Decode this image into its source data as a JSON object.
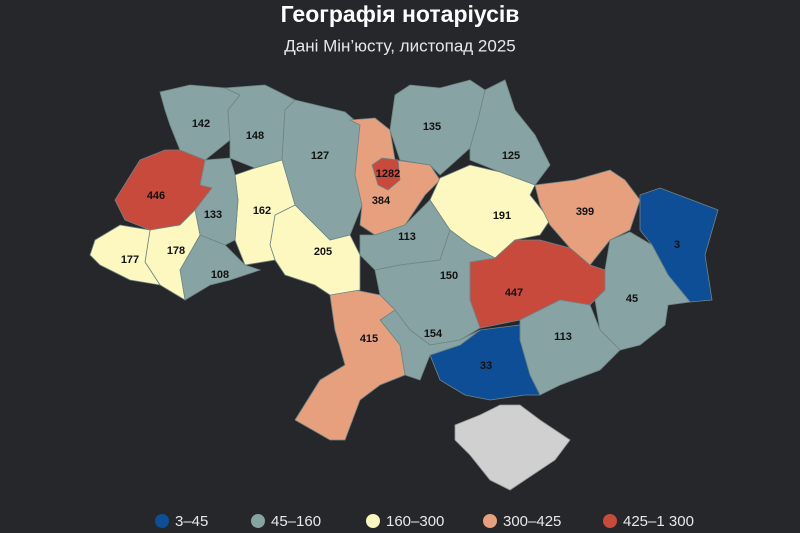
{
  "title": "Географія нотаріусів",
  "subtitle": "Дані Мін’юсту, листопад 2025",
  "regions": [
    {
      "value": 142,
      "color": "#87a3a3"
    },
    {
      "value": 148,
      "color": "#87a3a3"
    },
    {
      "value": 127,
      "color": "#87a3a3"
    },
    {
      "value": 384,
      "color": "#e6a07e"
    },
    {
      "value": 1282,
      "color": "#c84a3c"
    },
    {
      "value": 135,
      "color": "#87a3a3"
    },
    {
      "value": 125,
      "color": "#87a3a3"
    },
    {
      "value": 191,
      "color": "#fdf8c0"
    },
    {
      "value": 399,
      "color": "#e6a07e"
    },
    {
      "value": 3,
      "color": "#0d4e96"
    },
    {
      "value": 45,
      "color": "#87a3a3"
    },
    {
      "value": 447,
      "color": "#c84a3c"
    },
    {
      "value": 113,
      "color": "#87a3a3"
    },
    {
      "value": 33,
      "color": "#0d4e96"
    },
    {
      "value": 113,
      "color": "#87a3a3"
    },
    {
      "value": 150,
      "color": "#87a3a3"
    },
    {
      "value": 154,
      "color": "#87a3a3"
    },
    {
      "value": 415,
      "color": "#e6a07e"
    },
    {
      "value": 205,
      "color": "#fdf8c0"
    },
    {
      "value": 162,
      "color": "#fdf8c0"
    },
    {
      "value": 133,
      "color": "#87a3a3"
    },
    {
      "value": 446,
      "color": "#c84a3c"
    },
    {
      "value": 108,
      "color": "#87a3a3"
    },
    {
      "value": 178,
      "color": "#fdf8c0"
    },
    {
      "value": 177,
      "color": "#fdf8c0"
    }
  ],
  "legend": [
    {
      "label": "3–45",
      "color": "#0d4e96"
    },
    {
      "label": "45–160",
      "color": "#87a3a3"
    },
    {
      "label": "160–300",
      "color": "#fdf8c0"
    },
    {
      "label": "300–425",
      "color": "#e6a07e"
    },
    {
      "label": "425–1 300",
      "color": "#c84a3c"
    }
  ]
}
